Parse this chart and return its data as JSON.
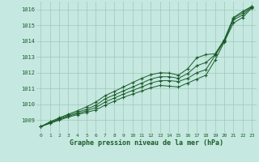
{
  "background_color": "#c5e8e0",
  "grid_color": "#a0c8b8",
  "line_color": "#1a5c2a",
  "xlabel": "Graphe pression niveau de la mer (hPa)",
  "xlim": [
    -0.5,
    23.5
  ],
  "ylim": [
    1008.2,
    1016.5
  ],
  "yticks": [
    1009,
    1010,
    1011,
    1012,
    1013,
    1014,
    1015,
    1016
  ],
  "xticks": [
    0,
    1,
    2,
    3,
    4,
    5,
    6,
    7,
    8,
    9,
    10,
    11,
    12,
    13,
    14,
    15,
    16,
    17,
    18,
    19,
    20,
    21,
    22,
    23
  ],
  "series": [
    [
      1008.6,
      1008.8,
      1009.0,
      1009.2,
      1009.35,
      1009.5,
      1009.65,
      1009.95,
      1010.2,
      1010.45,
      1010.65,
      1010.85,
      1011.05,
      1011.2,
      1011.15,
      1011.1,
      1011.35,
      1011.6,
      1011.85,
      1012.8,
      1013.95,
      1015.15,
      1015.5,
      1016.1
    ],
    [
      1008.6,
      1008.82,
      1009.05,
      1009.25,
      1009.42,
      1009.6,
      1009.8,
      1010.15,
      1010.4,
      1010.65,
      1010.88,
      1011.1,
      1011.35,
      1011.5,
      1011.5,
      1011.45,
      1011.65,
      1012.0,
      1012.2,
      1013.1,
      1014.0,
      1015.35,
      1015.65,
      1016.15
    ],
    [
      1008.6,
      1008.85,
      1009.1,
      1009.32,
      1009.5,
      1009.7,
      1009.95,
      1010.35,
      1010.6,
      1010.85,
      1011.1,
      1011.35,
      1011.6,
      1011.75,
      1011.75,
      1011.65,
      1011.95,
      1012.45,
      1012.65,
      1013.15,
      1014.05,
      1015.45,
      1015.78,
      1016.2
    ],
    [
      1008.6,
      1008.9,
      1009.15,
      1009.38,
      1009.6,
      1009.85,
      1010.15,
      1010.55,
      1010.82,
      1011.1,
      1011.38,
      1011.65,
      1011.88,
      1012.0,
      1011.98,
      1011.85,
      1012.25,
      1012.95,
      1013.15,
      1013.2,
      1014.1,
      1015.5,
      1015.88,
      1016.2
    ]
  ]
}
